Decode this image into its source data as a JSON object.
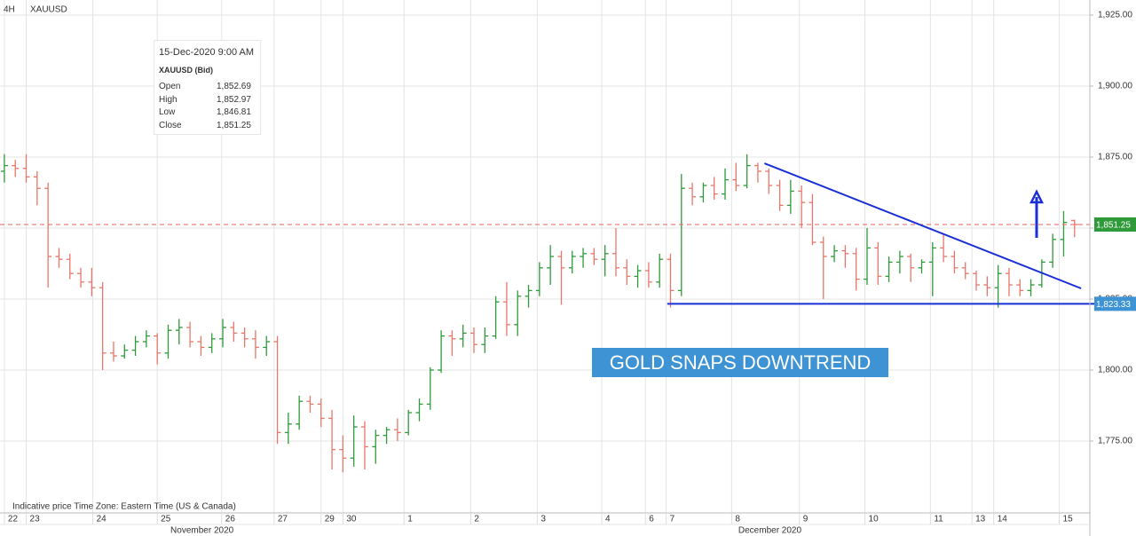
{
  "chart_data": {
    "type": "ohlc",
    "timeframe": "4H",
    "title": "XAUUSD",
    "note": "Indicative price    Time Zone: Eastern Time (US & Canada)",
    "annotation": "GOLD SNAPS DOWNTREND",
    "up_color": "#2f9a3a",
    "down_color": "#e8776a",
    "open": [
      1870,
      1872,
      1871,
      1868,
      1864,
      1840,
      1839,
      1834,
      1831,
      1829,
      1806,
      1805,
      1807,
      1810,
      1812,
      1806,
      1814,
      1815,
      1810,
      1808,
      1811,
      1815,
      1813,
      1811,
      1808,
      1810,
      1778,
      1781,
      1789,
      1788,
      1783,
      1772,
      1769,
      1780,
      1773,
      1777,
      1779,
      1778,
      1785,
      1788,
      1800,
      1812,
      1811,
      1813,
      1809,
      1812,
      1824,
      1816,
      1826,
      1828,
      1836,
      1840,
      1836,
      1840,
      1841,
      1839,
      1841,
      1836,
      1833,
      1835,
      1831,
      1839,
      1828,
      1864,
      1861,
      1865,
      1862,
      1867,
      1865,
      1872,
      1870,
      1865,
      1858,
      1863,
      1859,
      1845,
      1840,
      1842,
      1841,
      1832,
      1843,
      1833,
      1838,
      1840,
      1836,
      1838,
      1843,
      1840,
      1836,
      1834,
      1830,
      1829,
      1834,
      1830,
      1828,
      1830,
      1838,
      1846,
      1852.69
    ],
    "high": [
      1876,
      1874,
      1876,
      1870,
      1866,
      1843,
      1841,
      1836,
      1836,
      1831,
      1810,
      1809,
      1812,
      1814,
      1813,
      1816,
      1818,
      1817,
      1812,
      1813,
      1818,
      1817,
      1815,
      1814,
      1812,
      1812,
      1785,
      1791,
      1791,
      1790,
      1786,
      1777,
      1784,
      1782,
      1779,
      1780,
      1783,
      1786,
      1790,
      1801,
      1814,
      1814,
      1816,
      1815,
      1815,
      1826,
      1831,
      1828,
      1830,
      1838,
      1844,
      1842,
      1842,
      1843,
      1843,
      1844,
      1850,
      1839,
      1837,
      1838,
      1841,
      1841,
      1869,
      1866,
      1866,
      1868,
      1871,
      1873,
      1876,
      1873,
      1871,
      1867,
      1867,
      1865,
      1862,
      1847,
      1844,
      1844,
      1843,
      1850,
      1845,
      1840,
      1842,
      1841,
      1839,
      1845,
      1848,
      1842,
      1838,
      1835,
      1833,
      1837,
      1836,
      1832,
      1832,
      1839,
      1848,
      1856,
      1852.97
    ],
    "low": [
      1866,
      1868,
      1866,
      1858,
      1829,
      1836,
      1832,
      1829,
      1826,
      1800,
      1803,
      1804,
      1805,
      1808,
      1802,
      1804,
      1809,
      1808,
      1805,
      1806,
      1808,
      1810,
      1808,
      1804,
      1805,
      1774,
      1774,
      1779,
      1785,
      1780,
      1765,
      1764,
      1766,
      1765,
      1767,
      1774,
      1775,
      1777,
      1782,
      1786,
      1799,
      1805,
      1808,
      1806,
      1806,
      1811,
      1812,
      1812,
      1822,
      1826,
      1830,
      1823,
      1834,
      1836,
      1837,
      1833,
      1833,
      1830,
      1829,
      1829,
      1829,
      1822,
      1826,
      1858,
      1859,
      1860,
      1860,
      1863,
      1864,
      1866,
      1862,
      1856,
      1855,
      1850,
      1844,
      1825,
      1838,
      1836,
      1828,
      1830,
      1830,
      1831,
      1834,
      1831,
      1834,
      1826,
      1838,
      1834,
      1832,
      1828,
      1826,
      1822,
      1826,
      1826,
      1826,
      1829,
      1836,
      1840,
      1846.81
    ],
    "close": [
      1872,
      1871,
      1868,
      1864,
      1840,
      1839,
      1834,
      1831,
      1829,
      1806,
      1805,
      1807,
      1810,
      1812,
      1806,
      1814,
      1815,
      1810,
      1808,
      1811,
      1815,
      1813,
      1811,
      1808,
      1810,
      1778,
      1781,
      1789,
      1788,
      1783,
      1772,
      1769,
      1780,
      1773,
      1777,
      1779,
      1778,
      1785,
      1788,
      1800,
      1812,
      1811,
      1813,
      1809,
      1812,
      1824,
      1816,
      1826,
      1828,
      1836,
      1840,
      1836,
      1840,
      1841,
      1839,
      1841,
      1836,
      1833,
      1835,
      1831,
      1839,
      1828,
      1864,
      1861,
      1865,
      1862,
      1867,
      1865,
      1872,
      1870,
      1865,
      1858,
      1863,
      1859,
      1845,
      1840,
      1842,
      1841,
      1832,
      1843,
      1833,
      1838,
      1840,
      1836,
      1838,
      1843,
      1840,
      1836,
      1834,
      1830,
      1829,
      1834,
      1830,
      1828,
      1830,
      1838,
      1846,
      1852,
      1851.25
    ],
    "xlim": [
      -0.4,
      99.4
    ],
    "xticks": [
      {
        "value": 0,
        "label": "22"
      },
      {
        "value": 2.0,
        "label": "23"
      },
      {
        "value": 8.1,
        "label": "24"
      },
      {
        "value": 14,
        "label": "25"
      },
      {
        "value": 19.9,
        "label": "26"
      },
      {
        "value": 24.7,
        "label": "27"
      },
      {
        "value": 29,
        "label": "29"
      },
      {
        "value": 31,
        "label": "30"
      },
      {
        "value": 36.6,
        "label": "1"
      },
      {
        "value": 42.7,
        "label": "2"
      },
      {
        "value": 48.8,
        "label": "3"
      },
      {
        "value": 54.7,
        "label": "4"
      },
      {
        "value": 58.7,
        "label": "6"
      },
      {
        "value": 60.6,
        "label": "7"
      },
      {
        "value": 66.6,
        "label": "8"
      },
      {
        "value": 72.8,
        "label": "9"
      },
      {
        "value": 78.8,
        "label": "10"
      },
      {
        "value": 84.8,
        "label": "11"
      },
      {
        "value": 88.6,
        "label": "13"
      },
      {
        "value": 90.6,
        "label": "14"
      },
      {
        "value": 96.6,
        "label": "15"
      }
    ],
    "month_labels": [
      {
        "value": 18.1,
        "label": "November 2020"
      },
      {
        "value": 70.1,
        "label": "December 2020"
      }
    ],
    "ylim": [
      1749.7,
      1930.3
    ],
    "yticks": [
      {
        "value": 1775,
        "label": "1,775.00"
      },
      {
        "value": 1800,
        "label": "1,800.00"
      },
      {
        "value": 1825,
        "label": "1,825.00"
      },
      {
        "value": 1850,
        "label": "1,850.00"
      },
      {
        "value": 1875,
        "label": "1,875.00"
      },
      {
        "value": 1900,
        "label": "1,900.00"
      },
      {
        "value": 1925,
        "label": "1,925.00"
      }
    ],
    "grid": true,
    "trendlines": [
      {
        "color": "#1a2fd6",
        "x": [
          69.6,
          98.6
        ],
        "y": [
          1872.8,
          1828.75
        ]
      },
      {
        "color": "#1a2fd6",
        "x": [
          60.7,
          100
        ],
        "y": [
          1823.33,
          1823.33
        ]
      }
    ],
    "price_markers": [
      {
        "value": 1851.25,
        "label": "1,851.25",
        "color": "#2f9a3a",
        "line_color": "#e06060"
      },
      {
        "value": 1823.33,
        "label": "1,823.33",
        "color": "#3d93d4"
      }
    ],
    "tooltip": {
      "date": "15-Dec-2020 9:00 AM",
      "title": "XAUUSD (Bid)",
      "rows": [
        {
          "label": "Open",
          "value": "1,852.69"
        },
        {
          "label": "High",
          "value": "1,852.97"
        },
        {
          "label": "Low",
          "value": "1,846.81"
        },
        {
          "label": "Close",
          "value": "1,851.25"
        }
      ]
    }
  }
}
